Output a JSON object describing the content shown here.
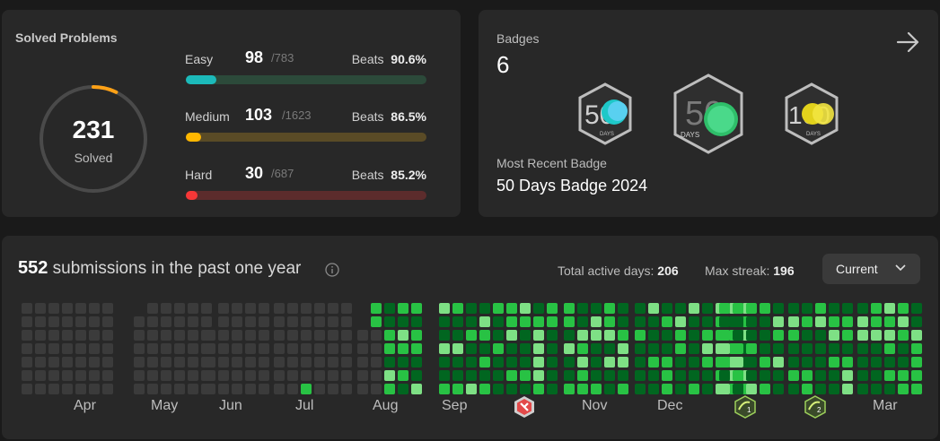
{
  "solved": {
    "title": "Solved Problems",
    "total": "231",
    "total_label": "Solved",
    "progress": 0.072,
    "difficulties": [
      {
        "name": "Easy",
        "solved": "98",
        "total": "/783",
        "beats_label": "Beats",
        "beats": "90.6%",
        "ratio": 0.125,
        "fill": "#1cbaba",
        "track": "#2c4a3a"
      },
      {
        "name": "Medium",
        "solved": "103",
        "total": "/1623",
        "beats_label": "Beats",
        "beats": "86.5%",
        "ratio": 0.063,
        "fill": "#ffb700",
        "track": "#5a4b26"
      },
      {
        "name": "Hard",
        "solved": "30",
        "total": "/687",
        "beats_label": "Beats",
        "beats": "85.2%",
        "ratio": 0.044,
        "fill": "#f63737",
        "track": "#5c2c2c"
      }
    ]
  },
  "badges": {
    "label": "Badges",
    "count": "6",
    "recent_label": "Most Recent Badge",
    "recent_name": "50 Days Badge 2024",
    "items": [
      {
        "icon": "50-days-badge-icon",
        "number": "50",
        "caption": "DAYS"
      },
      {
        "icon": "50-days-2024-badge-icon",
        "number": "50",
        "caption": "DAYS"
      },
      {
        "icon": "100-days-badge-icon",
        "number": "100",
        "caption": "DAYS"
      }
    ]
  },
  "submissions": {
    "count": "552",
    "text": "submissions in the past one year",
    "active_label": "Total active days:",
    "active_value": "206",
    "streak_label": "Max streak:",
    "streak_value": "196",
    "range": "Current",
    "months": [
      "Apr",
      "May",
      "Jun",
      "Jul",
      "Aug",
      "Sep",
      "Nov",
      "Dec",
      "Mar"
    ],
    "special_marks": [
      {
        "icon": "oct-monthly-badge-icon"
      },
      {
        "icon": "jan-monthly-badge-icon",
        "label": "1"
      },
      {
        "icon": "feb-monthly-badge-icon",
        "label": "2"
      }
    ]
  },
  "colors": {
    "card": "#282828",
    "empty_cell": "#3b3b3b",
    "green_dark": "#016620",
    "green_mid": "#28c244",
    "green_light": "#7ee085"
  }
}
